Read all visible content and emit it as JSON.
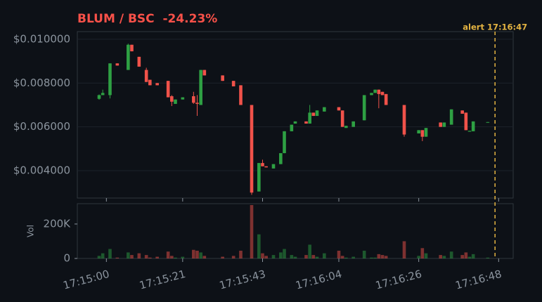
{
  "chart_data": {
    "type": "candlestick",
    "title": "BLUM / BSC  -24.23%",
    "x": [
      "17:14:58",
      "17:14:59",
      "17:15:01",
      "17:15:03",
      "17:15:06",
      "17:15:07",
      "17:15:09",
      "17:15:11",
      "17:15:12",
      "17:15:14",
      "17:15:17",
      "17:15:18",
      "17:15:19",
      "17:15:21",
      "17:15:24",
      "17:15:25",
      "17:15:26",
      "17:15:27",
      "17:15:32",
      "17:15:35",
      "17:15:37",
      "17:15:40",
      "17:15:42",
      "17:15:43",
      "17:15:44",
      "17:15:46",
      "17:15:48",
      "17:15:49",
      "17:15:51",
      "17:15:52",
      "17:15:55",
      "17:15:56",
      "17:15:57",
      "17:15:58",
      "17:16:00",
      "17:16:04",
      "17:16:05",
      "17:16:06",
      "17:16:08",
      "17:16:11",
      "17:16:13",
      "17:16:14",
      "17:16:15",
      "17:16:16",
      "17:16:17",
      "17:16:22",
      "17:16:26",
      "17:16:27",
      "17:16:28",
      "17:16:32",
      "17:16:33",
      "17:16:35",
      "17:16:38",
      "17:16:39",
      "17:16:40",
      "17:16:41",
      "17:16:45"
    ],
    "open": [
      0.00728,
      0.00745,
      0.00745,
      0.0089,
      0.0086,
      0.00975,
      0.0092,
      0.0086,
      0.00815,
      0.008,
      0.0081,
      0.0074,
      0.00705,
      0.00725,
      0.0074,
      0.0071,
      0.007,
      0.0086,
      0.00835,
      0.0081,
      0.0079,
      0.007,
      0.00305,
      0.00435,
      0.0042,
      0.0041,
      0.0043,
      0.0048,
      0.0058,
      0.00615,
      0.00625,
      0.00615,
      0.00665,
      0.0065,
      0.0067,
      0.0069,
      0.00675,
      0.00595,
      0.006,
      0.0063,
      0.00745,
      0.00755,
      0.0077,
      0.0076,
      0.0075,
      0.007,
      0.0057,
      0.00585,
      0.00555,
      0.0062,
      0.006,
      0.0061,
      0.00675,
      0.00665,
      0.00578,
      0.0058,
      0.0062
    ],
    "high": [
      0.00748,
      0.0077,
      0.0089,
      0.0089,
      0.0098,
      0.00975,
      0.0092,
      0.0087,
      0.00815,
      0.008,
      0.0081,
      0.00745,
      0.00725,
      0.00735,
      0.0076,
      0.00745,
      0.0086,
      0.0086,
      0.00835,
      0.0081,
      0.0079,
      0.007,
      0.00435,
      0.0045,
      0.0042,
      0.0043,
      0.0048,
      0.0058,
      0.0061,
      0.00625,
      0.00625,
      0.007,
      0.00665,
      0.00675,
      0.0069,
      0.0069,
      0.00675,
      0.00605,
      0.00625,
      0.00745,
      0.00755,
      0.0077,
      0.0077,
      0.0076,
      0.0075,
      0.007,
      0.00585,
      0.00585,
      0.00595,
      0.0062,
      0.0062,
      0.0068,
      0.00675,
      0.00665,
      0.00582,
      0.00625,
      0.00622
    ],
    "low": [
      0.00724,
      0.00745,
      0.0073,
      0.0088,
      0.0086,
      0.00945,
      0.00875,
      0.00805,
      0.0079,
      0.0079,
      0.00735,
      0.00695,
      0.00705,
      0.00725,
      0.00705,
      0.0065,
      0.007,
      0.00835,
      0.0081,
      0.00785,
      0.007,
      0.0029,
      0.00305,
      0.0042,
      0.00415,
      0.0041,
      0.0043,
      0.0048,
      0.0058,
      0.00615,
      0.00615,
      0.00615,
      0.0065,
      0.0065,
      0.0067,
      0.00675,
      0.006,
      0.00595,
      0.006,
      0.0063,
      0.00745,
      0.00755,
      0.00685,
      0.00745,
      0.007,
      0.00555,
      0.0057,
      0.00535,
      0.00555,
      0.006,
      0.006,
      0.0061,
      0.0066,
      0.00585,
      0.00578,
      0.0058,
      0.0062
    ],
    "close": [
      0.00745,
      0.00755,
      0.0089,
      0.0088,
      0.00975,
      0.00945,
      0.00875,
      0.00805,
      0.0079,
      0.0079,
      0.00735,
      0.00715,
      0.00725,
      0.00735,
      0.0071,
      0.00705,
      0.0086,
      0.00835,
      0.0081,
      0.00785,
      0.007,
      0.003,
      0.00435,
      0.0042,
      0.00415,
      0.0043,
      0.0048,
      0.0058,
      0.0061,
      0.00625,
      0.00615,
      0.00665,
      0.0065,
      0.00675,
      0.0069,
      0.00675,
      0.006,
      0.00605,
      0.00625,
      0.00745,
      0.00755,
      0.0077,
      0.0075,
      0.00745,
      0.007,
      0.00565,
      0.00585,
      0.00555,
      0.00595,
      0.006,
      0.0062,
      0.0068,
      0.0066,
      0.00585,
      0.00582,
      0.00625,
      0.00622
    ],
    "volume": [
      15000,
      30000,
      55000,
      5000,
      35000,
      20000,
      30000,
      20000,
      5000,
      10000,
      40000,
      15000,
      5000,
      10000,
      50000,
      45000,
      35000,
      15000,
      10000,
      15000,
      45000,
      310000,
      140000,
      30000,
      15000,
      20000,
      35000,
      55000,
      20000,
      10000,
      20000,
      80000,
      20000,
      10000,
      30000,
      45000,
      15000,
      5000,
      10000,
      45000,
      5000,
      5000,
      25000,
      20000,
      15000,
      100000,
      15000,
      60000,
      30000,
      20000,
      15000,
      40000,
      20000,
      35000,
      10000,
      25000,
      5000
    ],
    "up_color": "#2ea043",
    "down_color": "#f0524a",
    "xlim": [
      "17:14:52",
      "17:16:52"
    ],
    "xticks": [
      "17:15:00",
      "17:15:21",
      "17:15:43",
      "17:16:04",
      "17:16:26",
      "17:16:48"
    ],
    "ylim": [
      0.00275,
      0.01035
    ],
    "yticks": [
      {
        "value": 0.004,
        "label": "$0.004000"
      },
      {
        "value": 0.006,
        "label": "$0.006000"
      },
      {
        "value": 0.008,
        "label": "$0.008000"
      },
      {
        "value": 0.01,
        "label": "$0.010000"
      }
    ],
    "volume_label": "Vol",
    "volume_ylim": [
      0,
      318000
    ],
    "volume_yticks": [
      0,
      {
        "value": 200000,
        "label": "200K"
      }
    ],
    "annotation": {
      "text": "alert 17:16:47",
      "x": "17:16:47",
      "color": "#e3b341"
    },
    "grid": true
  }
}
